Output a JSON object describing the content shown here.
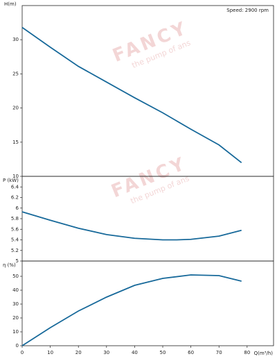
{
  "chart_data": [
    {
      "type": "line",
      "ylabel": "H(m)",
      "annotation": "Speed: 2900 rpm",
      "watermark": "FANCY",
      "watermark_sub": "the pump of ans",
      "x": [
        0,
        10,
        20,
        30,
        40,
        50,
        60,
        70,
        78
      ],
      "values": [
        31.8,
        28.9,
        26.1,
        23.8,
        21.5,
        19.3,
        16.9,
        14.6,
        12.0
      ],
      "color": "#17699a",
      "xlim": [
        0,
        89.4
      ],
      "ylim": [
        10,
        35
      ],
      "yticks": [
        10,
        15,
        20,
        25,
        30
      ]
    },
    {
      "type": "line",
      "ylabel": "P (kW)",
      "x": [
        0,
        10,
        20,
        30,
        40,
        50,
        55,
        60,
        70,
        78
      ],
      "values": [
        5.93,
        5.77,
        5.62,
        5.5,
        5.43,
        5.4,
        5.4,
        5.41,
        5.47,
        5.58
      ],
      "color": "#17699a",
      "xlim": [
        0,
        89.4
      ],
      "ylim": [
        5,
        6.6
      ],
      "yticks": [
        5,
        5.2,
        5.4,
        5.6,
        5.8,
        6,
        6.2,
        6.4
      ]
    },
    {
      "type": "line",
      "ylabel": "η (%)",
      "xlabel": "Q(m³/h)",
      "x": [
        0,
        10,
        20,
        30,
        40,
        50,
        60,
        70,
        78
      ],
      "values": [
        0,
        13,
        25,
        35,
        43.5,
        48.5,
        51,
        50.5,
        46.5
      ],
      "color": "#17699a",
      "xlim": [
        0,
        89.4
      ],
      "ylim": [
        0,
        61
      ],
      "yticks": [
        0,
        10,
        20,
        30,
        40,
        50
      ],
      "xticks": [
        0,
        10,
        20,
        30,
        40,
        50,
        60,
        70,
        80
      ]
    }
  ]
}
